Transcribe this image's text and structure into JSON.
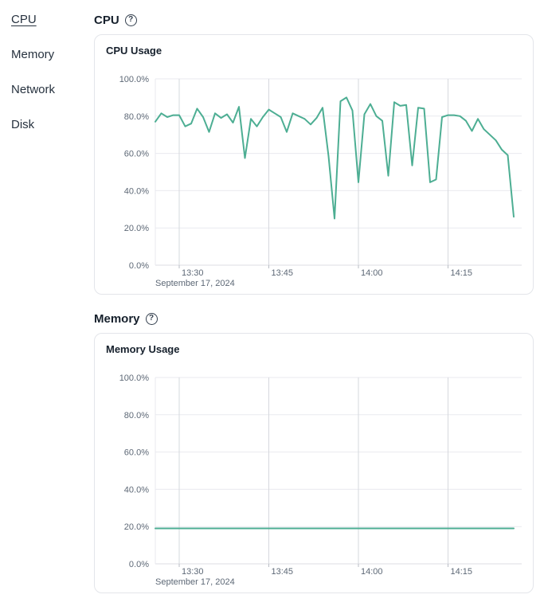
{
  "sidebar": {
    "items": [
      {
        "label": "CPU",
        "active": true
      },
      {
        "label": "Memory",
        "active": false
      },
      {
        "label": "Network",
        "active": false
      },
      {
        "label": "Disk",
        "active": false
      }
    ]
  },
  "icons": {
    "help_glyph": "?"
  },
  "sections": [
    {
      "heading": "CPU"
    },
    {
      "heading": "Memory"
    }
  ],
  "chart_data": [
    {
      "type": "line",
      "title": "CPU Usage",
      "x_axis_date": "September 17, 2024",
      "ylim": [
        0,
        100
      ],
      "grid": true,
      "legend": "none",
      "line_color": "#4dae93",
      "y_ticks": [
        {
          "label": "0.0%",
          "value": 0
        },
        {
          "label": "20.0%",
          "value": 20
        },
        {
          "label": "40.0%",
          "value": 40
        },
        {
          "label": "60.0%",
          "value": 60
        },
        {
          "label": "80.0%",
          "value": 80
        },
        {
          "label": "100.0%",
          "value": 100
        }
      ],
      "x_ticks": [
        "13:30",
        "13:45",
        "14:00",
        "14:15"
      ],
      "x": [
        "13:26",
        "13:27",
        "13:28",
        "13:29",
        "13:30",
        "13:31",
        "13:32",
        "13:33",
        "13:34",
        "13:35",
        "13:36",
        "13:37",
        "13:38",
        "13:39",
        "13:40",
        "13:41",
        "13:42",
        "13:43",
        "13:44",
        "13:45",
        "13:46",
        "13:47",
        "13:48",
        "13:49",
        "13:50",
        "13:51",
        "13:52",
        "13:53",
        "13:54",
        "13:55",
        "13:56",
        "13:57",
        "13:58",
        "13:59",
        "14:00",
        "14:01",
        "14:02",
        "14:03",
        "14:04",
        "14:05",
        "14:06",
        "14:07",
        "14:08",
        "14:09",
        "14:10",
        "14:11",
        "14:12",
        "14:13",
        "14:14",
        "14:15",
        "14:16",
        "14:17",
        "14:18",
        "14:19",
        "14:20",
        "14:21",
        "14:22",
        "14:23",
        "14:24",
        "14:25",
        "14:26"
      ],
      "values": [
        77,
        81.5,
        79.5,
        80.5,
        80.5,
        74.5,
        76,
        84,
        79.5,
        71.5,
        81.5,
        79,
        81,
        76.5,
        85,
        57.5,
        78.5,
        74.5,
        79.5,
        83.5,
        81.5,
        79.5,
        71.5,
        81.5,
        80,
        78.5,
        75.5,
        79,
        84.5,
        58.5,
        25,
        88,
        90,
        83,
        44.5,
        81,
        86.5,
        80,
        77.5,
        48,
        87.5,
        85.5,
        86,
        53.5,
        84.5,
        84,
        44.5,
        46,
        79.5,
        80.5,
        80.5,
        80,
        77.5,
        72,
        78.5,
        73,
        70,
        67,
        62,
        59,
        26
      ]
    },
    {
      "type": "line",
      "title": "Memory Usage",
      "x_axis_date": "September 17, 2024",
      "ylim": [
        0,
        100
      ],
      "grid": true,
      "legend": "none",
      "line_color": "#4dae93",
      "y_ticks": [
        {
          "label": "0.0%",
          "value": 0
        },
        {
          "label": "20.0%",
          "value": 20
        },
        {
          "label": "40.0%",
          "value": 40
        },
        {
          "label": "60.0%",
          "value": 60
        },
        {
          "label": "80.0%",
          "value": 80
        },
        {
          "label": "100.0%",
          "value": 100
        }
      ],
      "x_ticks": [
        "13:30",
        "13:45",
        "14:00",
        "14:15"
      ],
      "x": [
        "13:26",
        "13:27",
        "13:28",
        "13:29",
        "13:30",
        "13:31",
        "13:32",
        "13:33",
        "13:34",
        "13:35",
        "13:36",
        "13:37",
        "13:38",
        "13:39",
        "13:40",
        "13:41",
        "13:42",
        "13:43",
        "13:44",
        "13:45",
        "13:46",
        "13:47",
        "13:48",
        "13:49",
        "13:50",
        "13:51",
        "13:52",
        "13:53",
        "13:54",
        "13:55",
        "13:56",
        "13:57",
        "13:58",
        "13:59",
        "14:00",
        "14:01",
        "14:02",
        "14:03",
        "14:04",
        "14:05",
        "14:06",
        "14:07",
        "14:08",
        "14:09",
        "14:10",
        "14:11",
        "14:12",
        "14:13",
        "14:14",
        "14:15",
        "14:16",
        "14:17",
        "14:18",
        "14:19",
        "14:20",
        "14:21",
        "14:22",
        "14:23",
        "14:24",
        "14:25",
        "14:26"
      ],
      "values": [
        19,
        19,
        19,
        19,
        19,
        19,
        19,
        19,
        19,
        19,
        19,
        19,
        19,
        19,
        19,
        19,
        19,
        19,
        19,
        19,
        19,
        19,
        19,
        19,
        19,
        19,
        19,
        19,
        19,
        19,
        19,
        19,
        19,
        19,
        19,
        19,
        19,
        19,
        19,
        19,
        19,
        19,
        19,
        19,
        19,
        19,
        19,
        19,
        19,
        19,
        19,
        19,
        19,
        19,
        19,
        19,
        19,
        19,
        19,
        19,
        19
      ]
    }
  ]
}
